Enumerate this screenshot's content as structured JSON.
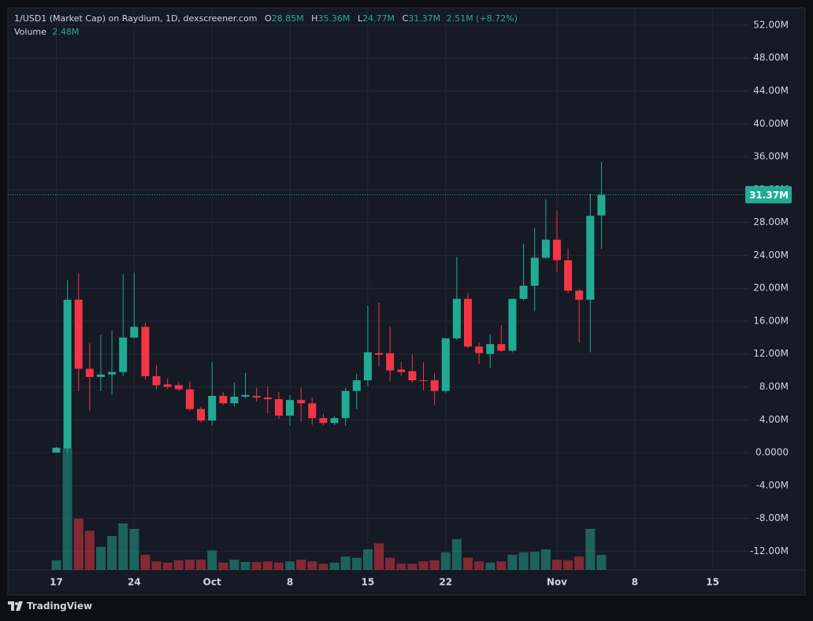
{
  "chart_data": {
    "type": "candlestick",
    "title": "1/USD1 (Market Cap) on Raydium, 1D, dexscreener.com",
    "ohlc_legend": {
      "o": "O",
      "o_value": "28.85M",
      "h": "H",
      "h_value": "35.36M",
      "l": "L",
      "l_value": "24.77M",
      "c": "C",
      "c_value": "31.37M",
      "change": "2.51M (+8.72%)"
    },
    "x": [
      "09-17",
      "09-18",
      "09-19",
      "09-20",
      "09-21",
      "09-22",
      "09-23",
      "09-24",
      "09-25",
      "09-26",
      "09-27",
      "09-28",
      "09-29",
      "09-30",
      "10-01",
      "10-02",
      "10-03",
      "10-04",
      "10-05",
      "10-06",
      "10-07",
      "10-08",
      "10-09",
      "10-10",
      "10-11",
      "10-12",
      "10-13",
      "10-14",
      "10-15",
      "10-16",
      "10-17",
      "10-18",
      "10-19",
      "10-20",
      "10-21",
      "10-22",
      "10-23",
      "10-24",
      "10-25",
      "10-26",
      "10-27",
      "10-28",
      "10-29",
      "10-30",
      "10-31",
      "11-01",
      "11-02",
      "11-03",
      "11-04",
      "11-05"
    ],
    "open": [
      0.0,
      0.5,
      18.6,
      10.2,
      9.2,
      9.5,
      9.8,
      14.0,
      15.3,
      9.3,
      8.3,
      8.2,
      7.7,
      5.3,
      3.9,
      6.9,
      6.0,
      6.8,
      6.9,
      6.7,
      6.5,
      4.5,
      6.4,
      6.0,
      4.2,
      3.6,
      4.2,
      7.5,
      8.8,
      12.1,
      12.1,
      10.1,
      9.9,
      8.8,
      8.8,
      7.5,
      13.9,
      18.7,
      12.9,
      12.0,
      13.2,
      12.4,
      18.7,
      20.3,
      23.7,
      25.9,
      23.4,
      19.7,
      18.6,
      28.85
    ],
    "high": [
      0.7,
      21.0,
      21.8,
      13.3,
      14.3,
      14.8,
      21.7,
      21.9,
      15.8,
      10.6,
      9.0,
      8.6,
      8.7,
      5.6,
      11.0,
      7.4,
      8.5,
      9.7,
      7.9,
      8.1,
      7.4,
      7.0,
      7.9,
      6.7,
      4.7,
      4.4,
      7.9,
      9.6,
      17.9,
      18.2,
      15.3,
      11.0,
      12.0,
      11.0,
      9.7,
      13.9,
      23.8,
      19.4,
      13.4,
      14.4,
      15.5,
      18.7,
      25.4,
      27.3,
      30.8,
      29.4,
      24.8,
      19.9,
      31.5,
      35.36
    ],
    "low": [
      0.0,
      0.0,
      7.5,
      5.1,
      7.5,
      7.0,
      9.3,
      13.9,
      8.9,
      7.7,
      7.75,
      7.5,
      5.1,
      3.7,
      3.3,
      5.8,
      5.6,
      6.6,
      6.2,
      4.8,
      4.1,
      3.3,
      3.8,
      3.4,
      3.3,
      3.35,
      3.3,
      5.3,
      8.1,
      10.5,
      8.7,
      9.3,
      8.5,
      7.6,
      5.8,
      7.3,
      13.7,
      12.7,
      10.8,
      10.3,
      12.2,
      12.2,
      18.5,
      17.2,
      23.6,
      22.0,
      19.4,
      13.4,
      12.2,
      24.77
    ],
    "close": [
      0.6,
      18.6,
      10.2,
      9.2,
      9.5,
      9.8,
      14.0,
      15.3,
      9.3,
      8.2,
      8.0,
      7.7,
      5.3,
      3.9,
      6.9,
      6.0,
      6.8,
      7.0,
      6.7,
      6.5,
      4.5,
      6.4,
      6.0,
      4.2,
      3.6,
      4.2,
      7.5,
      8.8,
      12.2,
      11.9,
      10.0,
      9.8,
      8.8,
      8.7,
      7.5,
      13.9,
      18.7,
      12.9,
      12.1,
      13.2,
      12.4,
      18.7,
      20.3,
      23.7,
      25.9,
      23.4,
      19.7,
      18.6,
      28.8,
      31.37
    ],
    "volume": {
      "name": "Volume",
      "last_label": "2.48M",
      "values": [
        1.6,
        20.1,
        8.5,
        6.5,
        3.8,
        5.6,
        7.7,
        6.8,
        2.5,
        1.4,
        1.2,
        1.6,
        1.7,
        1.7,
        3.2,
        1.2,
        1.7,
        1.3,
        1.3,
        1.4,
        1.2,
        1.4,
        1.7,
        1.4,
        1.0,
        1.2,
        2.2,
        2.0,
        3.4,
        4.4,
        2.0,
        1.0,
        1.0,
        1.4,
        1.6,
        2.9,
        5.1,
        2.0,
        1.4,
        1.2,
        1.4,
        2.5,
        2.9,
        3.0,
        3.4,
        1.7,
        1.6,
        2.2,
        6.8,
        2.48
      ]
    },
    "up_color": "#22ab94",
    "down_color": "#f23645",
    "last_price_label": "31.37M",
    "ylim": [
      -14.26,
      54.1
    ],
    "yticks": [
      {
        "value": 52,
        "label": "52.00M"
      },
      {
        "value": 48,
        "label": "48.00M"
      },
      {
        "value": 44,
        "label": "44.00M"
      },
      {
        "value": 40,
        "label": "40.00M"
      },
      {
        "value": 36,
        "label": "36.00M"
      },
      {
        "value": 32,
        "label": "32.00M"
      },
      {
        "value": 28,
        "label": "28.00M"
      },
      {
        "value": 24,
        "label": "24.00M"
      },
      {
        "value": 20,
        "label": "20.00M"
      },
      {
        "value": 16,
        "label": "16.00M"
      },
      {
        "value": 12,
        "label": "12.00M"
      },
      {
        "value": 8,
        "label": "8.00M"
      },
      {
        "value": 4,
        "label": "4.00M"
      },
      {
        "value": 0,
        "label": "0.0000"
      },
      {
        "value": -4,
        "label": "-4.00M"
      },
      {
        "value": -8,
        "label": "-8.00M"
      },
      {
        "value": -12,
        "label": "-12.00M"
      }
    ],
    "xlim": [
      "09-13",
      "11-18"
    ],
    "xticks": [
      {
        "value": "09-17",
        "label": "17"
      },
      {
        "value": "09-24",
        "label": "24"
      },
      {
        "value": "10-01",
        "label": "Oct"
      },
      {
        "value": "10-08",
        "label": "8"
      },
      {
        "value": "10-15",
        "label": "15"
      },
      {
        "value": "10-22",
        "label": "22"
      },
      {
        "value": "11-01",
        "label": "Nov"
      },
      {
        "value": "11-08",
        "label": "8"
      },
      {
        "value": "11-15",
        "label": "15"
      }
    ],
    "grid": true,
    "branding": "TradingView"
  }
}
